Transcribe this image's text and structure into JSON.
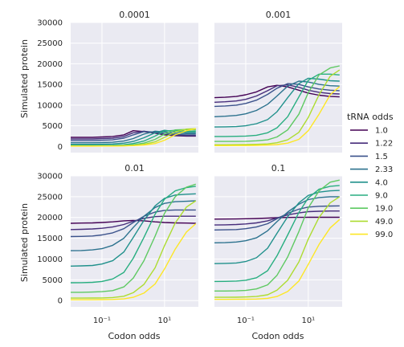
{
  "chart_data": {
    "type": "line",
    "grid": true,
    "xscale": "log",
    "xlim": [
      0.01,
      121
    ],
    "ylim": [
      -1500,
      30000
    ],
    "xlabel": "Codon odds",
    "ylabel": "Simulated protein",
    "xtick_labels": [
      "10⁻¹",
      "10¹"
    ],
    "ytick_labels": [
      "0",
      "5000",
      "10000",
      "15000",
      "20000",
      "25000",
      "30000"
    ],
    "x": [
      0.01,
      0.022,
      0.05,
      0.1,
      0.22,
      0.5,
      1,
      2.2,
      5,
      10,
      22,
      50,
      100
    ],
    "legend": {
      "title": "tRNA odds",
      "placement": "right",
      "entries": [
        "1.0",
        "1.22",
        "1.5",
        "2.33",
        "4.0",
        "9.0",
        "19.0",
        "49.0",
        "99.0"
      ]
    },
    "colors": [
      "#440154",
      "#472d7b",
      "#3b528b",
      "#2c728e",
      "#21918c",
      "#28ae80",
      "#5ec962",
      "#addc30",
      "#fde725"
    ],
    "panels": [
      {
        "title": "0.0001",
        "series": [
          {
            "values": [
              2200,
              2200,
              2200,
              2300,
              2400,
              2800,
              3800,
              3600,
              3200,
              2800,
              2600,
              2500,
              2500
            ]
          },
          {
            "values": [
              1800,
              1800,
              1800,
              1900,
              2000,
              2400,
              3300,
              3700,
              3300,
              2900,
              2700,
              2600,
              2600
            ]
          },
          {
            "values": [
              1400,
              1400,
              1400,
              1500,
              1600,
              2000,
              2800,
              3600,
              3500,
              3100,
              2900,
              2800,
              2800
            ]
          },
          {
            "values": [
              900,
              900,
              900,
              950,
              1000,
              1300,
              1900,
              3000,
              3700,
              3500,
              3200,
              3100,
              3100
            ]
          },
          {
            "values": [
              500,
              500,
              500,
              550,
              600,
              800,
              1200,
              2100,
              3300,
              3900,
              3600,
              3400,
              3400
            ]
          },
          {
            "values": [
              250,
              250,
              250,
              280,
              300,
              400,
              700,
              1300,
              2500,
              3700,
              3900,
              3700,
              3700
            ]
          },
          {
            "values": [
              150,
              150,
              150,
              160,
              180,
              250,
              400,
              800,
              1700,
              3000,
              4000,
              4100,
              4000
            ]
          },
          {
            "values": [
              100,
              100,
              100,
              110,
              120,
              160,
              250,
              500,
              1100,
              2200,
              3500,
              4200,
              4300
            ]
          },
          {
            "values": [
              80,
              80,
              80,
              90,
              100,
              130,
              200,
              350,
              700,
              1500,
              2800,
              3800,
              4300
            ]
          }
        ]
      },
      {
        "title": "0.001",
        "series": [
          {
            "values": [
              11800,
              11900,
              12100,
              12500,
              13200,
              14400,
              14800,
              14400,
              13600,
              12900,
              12400,
              12100,
              12000
            ]
          },
          {
            "values": [
              10700,
              10800,
              11000,
              11400,
              12200,
              13500,
              14700,
              14900,
              14300,
              13600,
              13100,
              12800,
              12700
            ]
          },
          {
            "values": [
              9700,
              9800,
              10000,
              10400,
              11200,
              12600,
              14100,
              15200,
              15000,
              14400,
              13900,
              13600,
              13500
            ]
          },
          {
            "values": [
              7200,
              7300,
              7500,
              7900,
              8700,
              10200,
              12200,
              14600,
              15800,
              15600,
              15000,
              14700,
              14600
            ]
          },
          {
            "values": [
              4700,
              4750,
              4800,
              5000,
              5500,
              6500,
              8400,
              11800,
              15200,
              16500,
              16300,
              15900,
              15800
            ]
          },
          {
            "values": [
              2400,
              2400,
              2450,
              2500,
              2700,
              3300,
              4500,
              7200,
              12000,
              16000,
              17500,
              17500,
              17300
            ]
          },
          {
            "values": [
              1200,
              1200,
              1200,
              1250,
              1350,
              1600,
              2300,
              4000,
              7800,
              13000,
              17300,
              19000,
              19500
            ]
          },
          {
            "values": [
              400,
              400,
              420,
              450,
              500,
              600,
              900,
              1600,
              3400,
              7000,
              12500,
              17000,
              18500
            ]
          },
          {
            "values": [
              200,
              200,
              210,
              220,
              250,
              320,
              450,
              800,
              1700,
              3800,
              7800,
              12500,
              14500
            ]
          }
        ]
      },
      {
        "title": "0.01",
        "series": [
          {
            "values": [
              18600,
              18650,
              18700,
              18800,
              18950,
              19200,
              19300,
              19200,
              18950,
              18800,
              18700,
              18650,
              18600
            ]
          },
          {
            "values": [
              17100,
              17150,
              17250,
              17400,
              17700,
              18300,
              19100,
              19800,
              20200,
              20300,
              20300,
              20300,
              20300
            ]
          },
          {
            "values": [
              15400,
              15450,
              15550,
              15800,
              16300,
              17300,
              18800,
              20300,
              21300,
              21700,
              21800,
              21800,
              21800
            ]
          },
          {
            "values": [
              12000,
              12050,
              12200,
              12500,
              13300,
              15000,
              17600,
              20300,
              22400,
              23400,
              23800,
              23900,
              24000
            ]
          },
          {
            "values": [
              8300,
              8350,
              8450,
              8800,
              9600,
              11700,
              15200,
              19300,
              22800,
              24600,
              25400,
              25600,
              25700
            ]
          },
          {
            "values": [
              4300,
              4320,
              4400,
              4600,
              5200,
              6800,
              10200,
              15200,
              20800,
              24400,
              26400,
              27200,
              27500
            ]
          },
          {
            "values": [
              2000,
              2000,
              2050,
              2150,
              2400,
              3300,
              5400,
              9600,
              15500,
              21000,
              25000,
              27300,
              28000
            ]
          },
          {
            "values": [
              600,
              600,
              620,
              650,
              750,
              1050,
              1900,
              3900,
              7900,
              13200,
              18700,
              22500,
              24000
            ]
          },
          {
            "values": [
              200,
              200,
              210,
              230,
              280,
              420,
              800,
              1800,
              4000,
              7600,
              12400,
              16500,
              18500
            ]
          }
        ]
      },
      {
        "title": "0.1",
        "series": [
          {
            "values": [
              19600,
              19620,
              19650,
              19700,
              19760,
              19850,
              19950,
              20000,
              20020,
              20040,
              20050,
              20050,
              20050
            ]
          },
          {
            "values": [
              18200,
              18230,
              18300,
              18450,
              18700,
              19200,
              19900,
              20600,
              21100,
              21400,
              21500,
              21550,
              21550
            ]
          },
          {
            "values": [
              17000,
              17030,
              17100,
              17300,
              17700,
              18500,
              19700,
              21000,
              22000,
              22500,
              22700,
              22750,
              22800
            ]
          },
          {
            "values": [
              13900,
              13950,
              14100,
              14400,
              15100,
              16800,
              19000,
              21300,
              23200,
              24300,
              24800,
              25000,
              25000
            ]
          },
          {
            "values": [
              8900,
              8950,
              9050,
              9400,
              10300,
              12600,
              16200,
              20200,
              23500,
              25300,
              26100,
              26400,
              26500
            ]
          },
          {
            "values": [
              4600,
              4620,
              4700,
              4900,
              5500,
              7200,
              10800,
              15800,
              21200,
              24700,
              26800,
              27500,
              27700
            ]
          },
          {
            "values": [
              2300,
              2300,
              2350,
              2450,
              2800,
              3800,
              6100,
              10500,
              16600,
              22300,
              26400,
              28500,
              29000
            ]
          },
          {
            "values": [
              800,
              800,
              820,
              870,
              1000,
              1400,
              2500,
              4900,
              9300,
              14800,
              20000,
              23500,
              25000
            ]
          },
          {
            "values": [
              300,
              300,
              310,
              330,
              380,
              550,
              1000,
              2200,
              4700,
              8700,
              13500,
              17500,
              19500
            ]
          }
        ]
      }
    ]
  }
}
